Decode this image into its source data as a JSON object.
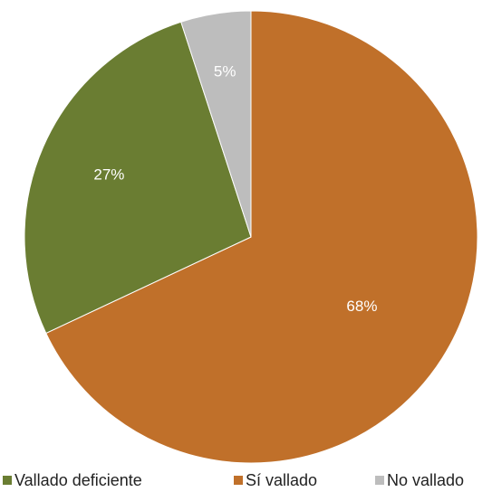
{
  "chart_data": {
    "type": "pie",
    "categories": [
      "Sí vallado",
      "Vallado deficiente",
      "No vallado"
    ],
    "values": [
      68,
      27,
      5
    ],
    "value_labels": [
      "68%",
      "27%",
      "5%"
    ],
    "colors": [
      "#c0702a",
      "#6a7d32",
      "#bdbdbd"
    ]
  }
}
